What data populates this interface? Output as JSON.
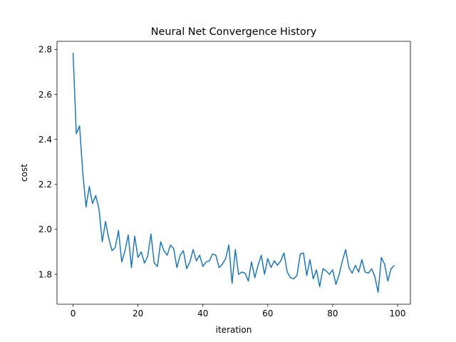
{
  "chart_data": {
    "type": "line",
    "title": "Neural Net Convergence History",
    "xlabel": "iteration",
    "ylabel": "cost",
    "xlim": [
      -4.95,
      103.95
    ],
    "ylim": [
      1.667,
      2.836
    ],
    "xticks": [
      0,
      20,
      40,
      60,
      80,
      100
    ],
    "xtick_labels": [
      "0",
      "20",
      "40",
      "60",
      "80",
      "100"
    ],
    "yticks": [
      1.8,
      2.0,
      2.2,
      2.4,
      2.6,
      2.8
    ],
    "ytick_labels": [
      "1.8",
      "2.0",
      "2.2",
      "2.4",
      "2.6",
      "2.8"
    ],
    "grid": false,
    "legend": "none",
    "colors": {
      "series": "#1f77b4"
    },
    "series": [
      {
        "x": [
          0,
          1,
          2,
          3,
          4,
          5,
          6,
          7,
          8,
          9,
          10,
          11,
          12,
          13,
          14,
          15,
          16,
          17,
          18,
          19,
          20,
          21,
          22,
          23,
          24,
          25,
          26,
          27,
          28,
          29,
          30,
          31,
          32,
          33,
          34,
          35,
          36,
          37,
          38,
          39,
          40,
          41,
          42,
          43,
          44,
          45,
          46,
          47,
          48,
          49,
          50,
          51,
          52,
          53,
          54,
          55,
          56,
          57,
          58,
          59,
          60,
          61,
          62,
          63,
          64,
          65,
          66,
          67,
          68,
          69,
          70,
          71,
          72,
          73,
          74,
          75,
          76,
          77,
          78,
          79,
          80,
          81,
          82,
          83,
          84,
          85,
          86,
          87,
          88,
          89,
          90,
          91,
          92,
          93,
          94,
          95,
          96,
          97,
          98,
          99
        ],
        "values": [
          2.785,
          2.425,
          2.46,
          2.25,
          2.1,
          2.19,
          2.115,
          2.15,
          2.09,
          1.945,
          2.035,
          1.96,
          1.905,
          1.92,
          1.995,
          1.855,
          1.905,
          1.975,
          1.83,
          1.97,
          1.875,
          1.9,
          1.85,
          1.88,
          1.98,
          1.85,
          1.835,
          1.945,
          1.905,
          1.885,
          1.93,
          1.915,
          1.83,
          1.885,
          1.905,
          1.825,
          1.855,
          1.91,
          1.86,
          1.885,
          1.835,
          1.855,
          1.86,
          1.89,
          1.885,
          1.83,
          1.845,
          1.87,
          1.93,
          1.76,
          1.91,
          1.8,
          1.81,
          1.805,
          1.77,
          1.855,
          1.785,
          1.84,
          1.885,
          1.8,
          1.87,
          1.83,
          1.86,
          1.84,
          1.86,
          1.895,
          1.81,
          1.785,
          1.78,
          1.795,
          1.89,
          1.895,
          1.795,
          1.865,
          1.78,
          1.82,
          1.745,
          1.825,
          1.815,
          1.8,
          1.82,
          1.755,
          1.8,
          1.86,
          1.91,
          1.83,
          1.805,
          1.84,
          1.81,
          1.865,
          1.81,
          1.805,
          1.825,
          1.79,
          1.72,
          1.875,
          1.845,
          1.77,
          1.825,
          1.84
        ]
      }
    ]
  }
}
